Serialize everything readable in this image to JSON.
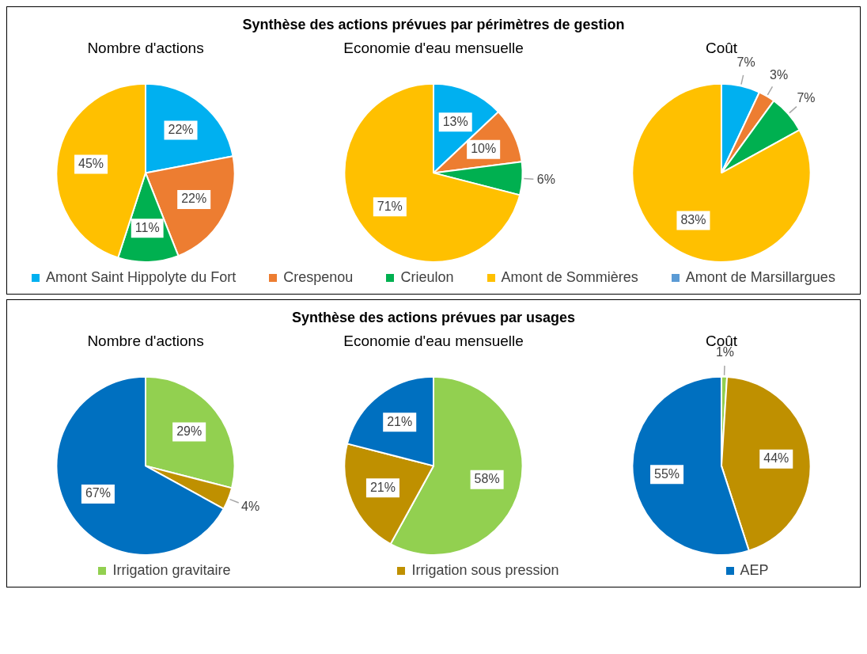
{
  "chart_data": [
    {
      "type": "pie",
      "title": "Nombre d'actions",
      "annotations": [
        "Synthèse des actions prévues par périmètres de gestion"
      ],
      "legend": "bottom",
      "categories": [
        "Amont Saint Hippolyte du Fort",
        "Crespenou",
        "Crieulon",
        "Amont de Sommières",
        "Amont de Marsillargues"
      ],
      "values": [
        22,
        22,
        11,
        45,
        0
      ],
      "colors": [
        "#00b0f0",
        "#ed7d31",
        "#00b050",
        "#ffc000",
        "#5b9bd5"
      ],
      "value_labels": [
        "22%",
        "22%",
        "11%",
        "45%",
        null
      ]
    },
    {
      "type": "pie",
      "title": "Economie d'eau mensuelle",
      "values": [
        13,
        10,
        6,
        71,
        0
      ],
      "colors": [
        "#00b0f0",
        "#ed7d31",
        "#00b050",
        "#ffc000",
        "#5b9bd5"
      ],
      "value_labels": [
        "13%",
        "10%",
        "6%",
        "71%",
        null
      ]
    },
    {
      "type": "pie",
      "title": "Coût",
      "values": [
        7,
        3,
        7,
        83,
        0
      ],
      "colors": [
        "#00b0f0",
        "#ed7d31",
        "#00b050",
        "#ffc000",
        "#5b9bd5"
      ],
      "value_labels": [
        "7%",
        "3%",
        "7%",
        "83%",
        null
      ]
    },
    {
      "type": "pie",
      "title": "Nombre d'actions",
      "annotations": [
        "Synthèse des actions prévues par usages"
      ],
      "legend": "bottom",
      "categories": [
        "Irrigation gravitaire",
        "Irrigation sous pression",
        "AEP"
      ],
      "values": [
        29,
        4,
        67
      ],
      "colors": [
        "#92d050",
        "#bf9000",
        "#0070c0"
      ],
      "value_labels": [
        "29%",
        "4%",
        "67%"
      ]
    },
    {
      "type": "pie",
      "title": "Economie d'eau mensuelle",
      "values": [
        58,
        21,
        21
      ],
      "colors": [
        "#92d050",
        "#bf9000",
        "#0070c0"
      ],
      "value_labels": [
        "58%",
        "21%",
        "21%"
      ]
    },
    {
      "type": "pie",
      "title": "Coût",
      "values": [
        1,
        44,
        55
      ],
      "colors": [
        "#92d050",
        "#bf9000",
        "#0070c0"
      ],
      "value_labels": [
        "1%",
        "44%",
        "55%"
      ]
    }
  ]
}
